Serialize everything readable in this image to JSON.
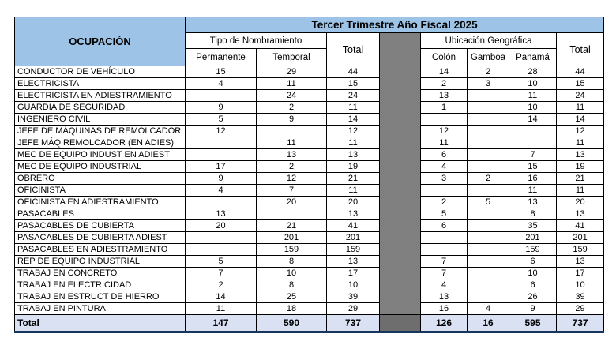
{
  "banner": {
    "title": "Tercer Trimestre Año Fiscal 2025"
  },
  "table": {
    "ocupacion_header": "OCUPACIÓN",
    "group1": {
      "label": "Tipo de Nombramiento",
      "cols": [
        "Permanente",
        "Temporal"
      ],
      "total_label": "Total"
    },
    "group2": {
      "label": "Ubicación Geográfica",
      "cols": [
        "Colón",
        "Gamboa",
        "Panamá"
      ],
      "total_label": "Total"
    },
    "rows": [
      {
        "name": "CONDUCTOR DE VEHÍCULO",
        "values": [
          "15",
          "29",
          "44",
          "14",
          "2",
          "28",
          "44"
        ]
      },
      {
        "name": "ELECTRICISTA",
        "values": [
          "4",
          "11",
          "15",
          "2",
          "3",
          "10",
          "15"
        ]
      },
      {
        "name": "ELECTRICISTA EN ADIESTRAMIENTO",
        "values": [
          "",
          "24",
          "24",
          "13",
          "",
          "11",
          "24"
        ]
      },
      {
        "name": "GUARDIA DE SEGURIDAD",
        "values": [
          "9",
          "2",
          "11",
          "1",
          "",
          "10",
          "11"
        ]
      },
      {
        "name": "INGENIERO CIVIL",
        "values": [
          "5",
          "9",
          "14",
          "",
          "",
          "14",
          "14"
        ]
      },
      {
        "name": "JEFE DE MÁQUINAS DE REMOLCADOR",
        "values": [
          "12",
          "",
          "12",
          "12",
          "",
          "",
          "12"
        ]
      },
      {
        "name": "JEFE MÁQ REMOLCADOR (EN ADIES)",
        "values": [
          "",
          "11",
          "11",
          "11",
          "",
          "",
          "11"
        ]
      },
      {
        "name": "MEC DE EQUIPO INDUST EN ADIEST",
        "values": [
          "",
          "13",
          "13",
          "6",
          "",
          "7",
          "13"
        ]
      },
      {
        "name": "MEC DE EQUIPO INDUSTRIAL",
        "values": [
          "17",
          "2",
          "19",
          "4",
          "",
          "15",
          "19"
        ]
      },
      {
        "name": "OBRERO",
        "values": [
          "9",
          "12",
          "21",
          "3",
          "2",
          "16",
          "21"
        ]
      },
      {
        "name": "OFICINISTA",
        "values": [
          "4",
          "7",
          "11",
          "",
          "",
          "11",
          "11"
        ]
      },
      {
        "name": "OFICINISTA EN ADIESTRAMIENTO",
        "values": [
          "",
          "20",
          "20",
          "2",
          "5",
          "13",
          "20"
        ]
      },
      {
        "name": "PASACABLES",
        "values": [
          "13",
          "",
          "13",
          "5",
          "",
          "8",
          "13"
        ]
      },
      {
        "name": "PASACABLES DE CUBIERTA",
        "values": [
          "20",
          "21",
          "41",
          "6",
          "",
          "35",
          "41"
        ]
      },
      {
        "name": "PASACABLES DE CUBIERTA ADIEST",
        "values": [
          "",
          "201",
          "201",
          "",
          "",
          "201",
          "201"
        ]
      },
      {
        "name": "PASACABLES EN ADIESTRAMIENTO",
        "values": [
          "",
          "159",
          "159",
          "",
          "",
          "159",
          "159"
        ]
      },
      {
        "name": "REP DE EQUIPO INDUSTRIAL",
        "values": [
          "5",
          "8",
          "13",
          "7",
          "",
          "6",
          "13"
        ]
      },
      {
        "name": "TRABAJ EN CONCRETO",
        "values": [
          "7",
          "10",
          "17",
          "7",
          "",
          "10",
          "17"
        ]
      },
      {
        "name": "TRABAJ EN ELECTRICIDAD",
        "values": [
          "2",
          "8",
          "10",
          "4",
          "",
          "6",
          "10"
        ]
      },
      {
        "name": "TRABAJ EN ESTRUCT DE HIERRO",
        "values": [
          "14",
          "25",
          "39",
          "13",
          "",
          "26",
          "39"
        ]
      },
      {
        "name": "TRABAJ EN PINTURA",
        "values": [
          "11",
          "18",
          "29",
          "16",
          "4",
          "9",
          "29"
        ]
      }
    ],
    "total_row": {
      "name": "Total",
      "values": [
        "147",
        "590",
        "737",
        "126",
        "16",
        "595",
        "737"
      ]
    }
  },
  "colors": {
    "header_fill": "#9DC3E6",
    "banner_text": "#1F3864",
    "total_row_fill": "#D9E1F2",
    "separator_gray": "#808080",
    "separator_gray_total": "#6E6E6E",
    "outer_border": "#17365D"
  }
}
